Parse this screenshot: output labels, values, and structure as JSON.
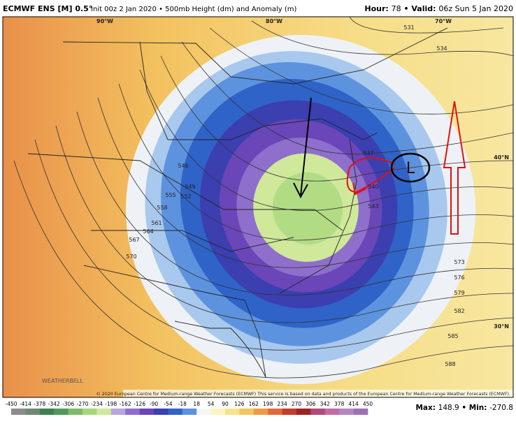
{
  "header": {
    "model": "ECMWF ENS [M] 0.5°",
    "info": "Init 00z 2 Jan 2020 • 500mb Height (dm) and Anomaly (m)",
    "hour_label": "Hour:",
    "hour": "78",
    "valid_label": "Valid:",
    "valid": "06z Sun 5 Jan 2020"
  },
  "map": {
    "lon_labels": [
      "90°W",
      "80°W",
      "70°W"
    ],
    "lat_labels": [
      "40°N",
      "30°N"
    ],
    "contour_labels": [
      "531",
      "534",
      "537",
      "540",
      "543",
      "546",
      "549",
      "552",
      "555",
      "558",
      "561",
      "564",
      "567",
      "570",
      "573",
      "576",
      "579",
      "582",
      "585",
      "588"
    ],
    "annotation": "L",
    "logo": "WEATHERBELL",
    "credit": "© 2020 European Centre for Medium-range Weather Forecasts (ECMWF) This service is based on data and products of the European Centre for Medium-range Weather Forecasts (ECMWF)."
  },
  "colorbar": {
    "labels": [
      "-450",
      "-414",
      "-378",
      "-342",
      "-306",
      "-270",
      "-234",
      "-198",
      "-162",
      "-126",
      "-90",
      "-54",
      "-18",
      "18",
      "54",
      "90",
      "126",
      "162",
      "198",
      "234",
      "270",
      "306",
      "342",
      "378",
      "414",
      "450"
    ],
    "colors": [
      "#8c8c8c",
      "#6f8a74",
      "#3f7f52",
      "#4f9a5a",
      "#7dbb6a",
      "#a9d67c",
      "#cfe89a",
      "#b7a6dc",
      "#8e6fcc",
      "#6a46b8",
      "#3b3fb0",
      "#2f63c8",
      "#5d93de",
      "#f4f6fa",
      "#fbf4c0",
      "#f7e48a",
      "#f3c65c",
      "#ee9a45",
      "#e06a3a",
      "#c43c2c",
      "#9e2424",
      "#b04a7a",
      "#c46aa4",
      "#b486c4",
      "#9c70b4"
    ]
  },
  "footer": {
    "max_label": "Max:",
    "max": "148.9",
    "min_label": "Min:",
    "min": "-270.8"
  }
}
